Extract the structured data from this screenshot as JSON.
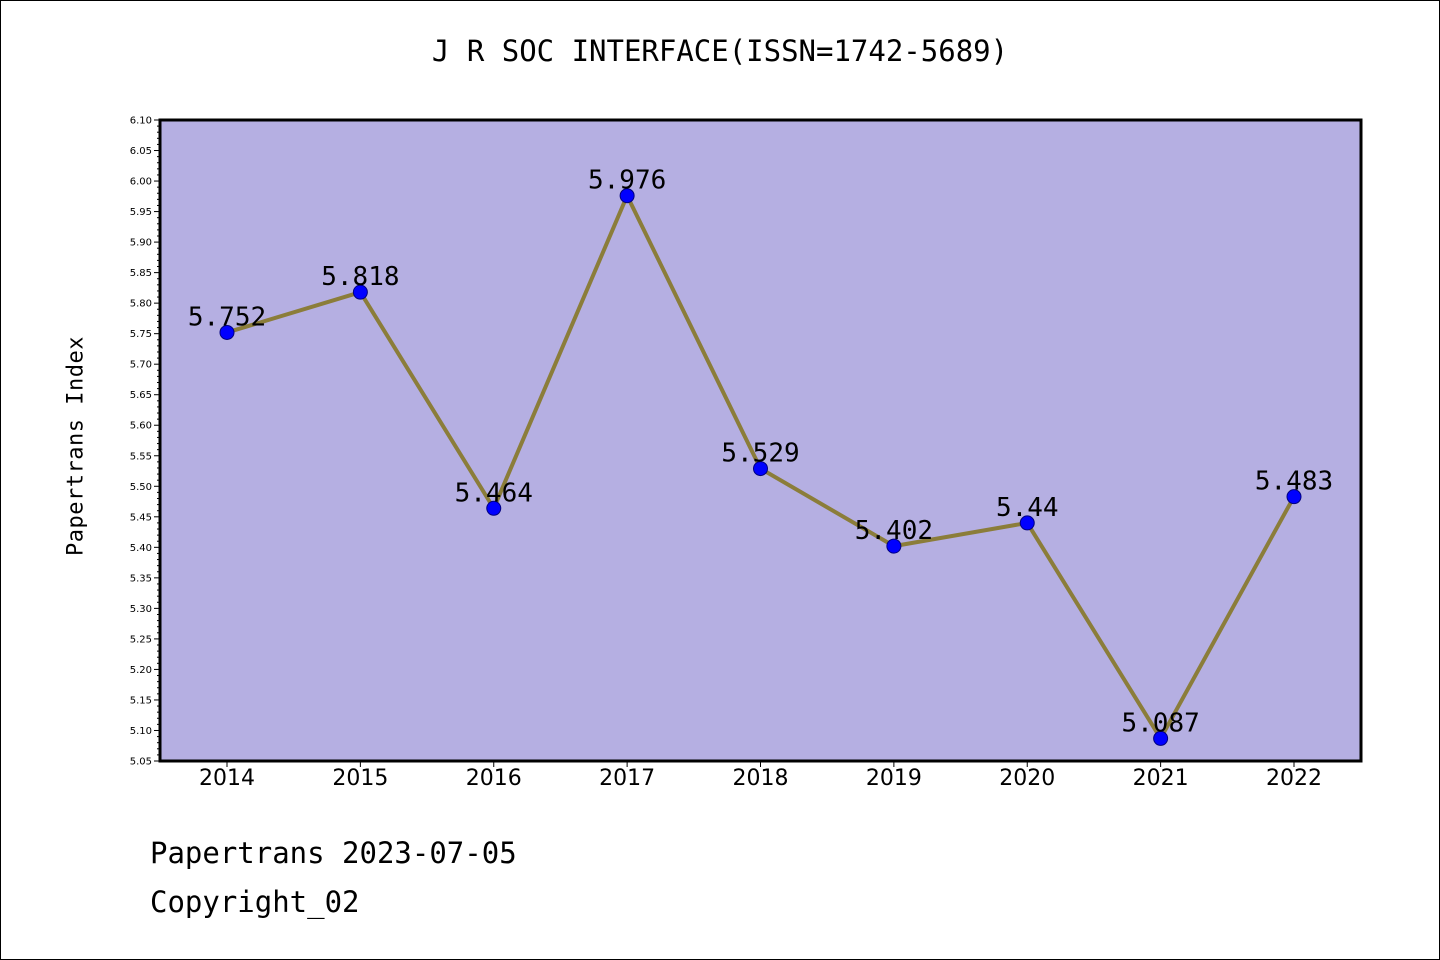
{
  "chart_data": {
    "type": "line",
    "title": "J R SOC INTERFACE(ISSN=1742-5689)",
    "xlabel": "",
    "ylabel": "Papertrans Index",
    "categories": [
      "2014",
      "2015",
      "2016",
      "2017",
      "2018",
      "2019",
      "2020",
      "2021",
      "2022"
    ],
    "series": [
      {
        "values": [
          5.752,
          5.818,
          5.464,
          5.976,
          5.529,
          5.402,
          5.44,
          5.087,
          5.483
        ],
        "labels": [
          "5.752",
          "5.818",
          "5.464",
          "5.976",
          "5.529",
          "5.402",
          "5.44",
          "5.087",
          "5.483"
        ]
      }
    ],
    "ylim": [
      5.05,
      6.1
    ],
    "yticks": [
      "5.05",
      "5.10",
      "5.15",
      "5.20",
      "5.25",
      "5.30",
      "5.35",
      "5.40",
      "5.45",
      "5.50",
      "5.55",
      "5.60",
      "5.65",
      "5.70",
      "5.75",
      "5.80",
      "5.85",
      "5.90",
      "5.95",
      "6.00",
      "6.05",
      "6.10"
    ],
    "grid": false,
    "colors": {
      "plot_background": "#b5afe2",
      "line": "#8b7d3a",
      "marker_fill": "#0000ff",
      "marker_edge": "#000080"
    }
  },
  "footer": {
    "line1": "Papertrans 2023-07-05",
    "line2": "Copyright_02"
  }
}
